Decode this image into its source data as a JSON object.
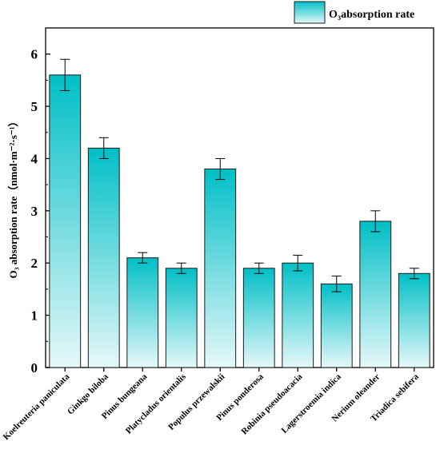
{
  "chart_data": {
    "type": "bar",
    "categories": [
      "Koelreuteria paniculata",
      "Ginkgo biloba",
      "Pinus bungeana",
      "Platycladus orientalis",
      "Populus przewalskii",
      "Pinus ponderosa",
      "Robinia pseudoacacia",
      "Lagerstroemia indica",
      "Nerium oleander",
      "Triadica sebifera"
    ],
    "series": [
      {
        "name": "O₃absorption rate",
        "values": [
          5.6,
          4.2,
          2.1,
          1.9,
          3.8,
          1.9,
          2.0,
          1.6,
          2.8,
          1.8
        ],
        "errors": [
          0.3,
          0.2,
          0.1,
          0.1,
          0.2,
          0.1,
          0.15,
          0.15,
          0.2,
          0.1
        ]
      }
    ],
    "title": "",
    "ylabel": "O₃ absorption rate（nmol·m⁻²·s⁻¹）",
    "xlabel": "",
    "ylim": [
      0,
      6.5
    ],
    "yticks": [
      0,
      1,
      2,
      3,
      4,
      5,
      6
    ],
    "legend_position": "top-right",
    "colors": {
      "bar_top": "#00bfc6",
      "bar_bottom": "#e6f8f9",
      "bar_edge": "#1a1a1a"
    }
  }
}
